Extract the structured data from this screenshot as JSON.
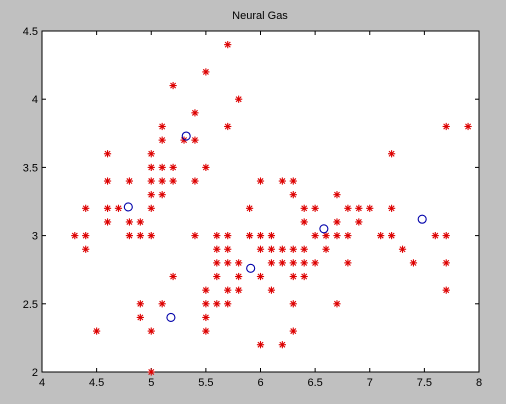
{
  "window": {
    "background": "#c0c0c0"
  },
  "colors": {
    "plot_bg": "#ffffff",
    "data_marker": "#dd0000",
    "prototype_marker": "#0000aa",
    "axis": "#000000"
  },
  "chart_data": {
    "type": "scatter",
    "title": "Neural Gas",
    "xlabel": "",
    "ylabel": "",
    "xlim": [
      4,
      8
    ],
    "ylim": [
      2,
      4.5
    ],
    "x_ticks": [
      "4",
      "4.5",
      "5",
      "5.5",
      "6",
      "6.5",
      "7",
      "7.5",
      "8"
    ],
    "y_ticks": [
      "2",
      "2.5",
      "3",
      "3.5",
      "4",
      "4.5"
    ],
    "grid": false,
    "legend": "none",
    "series": [
      {
        "marker": "asterisk",
        "color": "#dd0000",
        "points": [
          [
            4.3,
            3.0
          ],
          [
            4.4,
            2.9
          ],
          [
            4.4,
            3.0
          ],
          [
            4.4,
            3.2
          ],
          [
            4.5,
            2.3
          ],
          [
            4.6,
            3.1
          ],
          [
            4.6,
            3.2
          ],
          [
            4.6,
            3.4
          ],
          [
            4.6,
            3.6
          ],
          [
            4.7,
            3.2
          ],
          [
            4.8,
            3.0
          ],
          [
            4.8,
            3.1
          ],
          [
            4.8,
            3.4
          ],
          [
            4.9,
            2.4
          ],
          [
            4.9,
            2.5
          ],
          [
            4.9,
            3.0
          ],
          [
            4.9,
            3.1
          ],
          [
            5.0,
            2.0
          ],
          [
            5.0,
            2.3
          ],
          [
            5.0,
            3.0
          ],
          [
            5.0,
            3.2
          ],
          [
            5.0,
            3.3
          ],
          [
            5.0,
            3.4
          ],
          [
            5.0,
            3.5
          ],
          [
            5.0,
            3.6
          ],
          [
            5.1,
            2.5
          ],
          [
            5.1,
            3.3
          ],
          [
            5.1,
            3.4
          ],
          [
            5.1,
            3.5
          ],
          [
            5.1,
            3.7
          ],
          [
            5.1,
            3.8
          ],
          [
            5.2,
            2.7
          ],
          [
            5.2,
            3.4
          ],
          [
            5.2,
            3.5
          ],
          [
            5.2,
            4.1
          ],
          [
            5.3,
            3.7
          ],
          [
            5.4,
            3.0
          ],
          [
            5.4,
            3.4
          ],
          [
            5.4,
            3.7
          ],
          [
            5.4,
            3.9
          ],
          [
            5.5,
            2.3
          ],
          [
            5.5,
            2.4
          ],
          [
            5.5,
            2.5
          ],
          [
            5.5,
            2.6
          ],
          [
            5.5,
            3.5
          ],
          [
            5.5,
            4.2
          ],
          [
            5.6,
            2.5
          ],
          [
            5.6,
            2.7
          ],
          [
            5.6,
            2.8
          ],
          [
            5.6,
            2.9
          ],
          [
            5.6,
            3.0
          ],
          [
            5.7,
            2.5
          ],
          [
            5.7,
            2.6
          ],
          [
            5.7,
            2.8
          ],
          [
            5.7,
            2.9
          ],
          [
            5.7,
            3.0
          ],
          [
            5.7,
            3.8
          ],
          [
            5.7,
            4.4
          ],
          [
            5.8,
            2.6
          ],
          [
            5.8,
            2.7
          ],
          [
            5.8,
            2.8
          ],
          [
            5.8,
            4.0
          ],
          [
            5.9,
            3.0
          ],
          [
            5.9,
            3.2
          ],
          [
            6.0,
            2.2
          ],
          [
            6.0,
            2.7
          ],
          [
            6.0,
            2.9
          ],
          [
            6.0,
            3.0
          ],
          [
            6.0,
            3.4
          ],
          [
            6.1,
            2.6
          ],
          [
            6.1,
            2.8
          ],
          [
            6.1,
            2.9
          ],
          [
            6.1,
            3.0
          ],
          [
            6.2,
            2.2
          ],
          [
            6.2,
            2.8
          ],
          [
            6.2,
            2.9
          ],
          [
            6.2,
            3.4
          ],
          [
            6.3,
            2.3
          ],
          [
            6.3,
            2.5
          ],
          [
            6.3,
            2.7
          ],
          [
            6.3,
            2.8
          ],
          [
            6.3,
            2.9
          ],
          [
            6.3,
            3.3
          ],
          [
            6.3,
            3.4
          ],
          [
            6.4,
            2.7
          ],
          [
            6.4,
            2.8
          ],
          [
            6.4,
            2.9
          ],
          [
            6.4,
            3.1
          ],
          [
            6.4,
            3.2
          ],
          [
            6.5,
            2.8
          ],
          [
            6.5,
            3.0
          ],
          [
            6.5,
            3.2
          ],
          [
            6.6,
            2.9
          ],
          [
            6.6,
            3.0
          ],
          [
            6.7,
            2.5
          ],
          [
            6.7,
            3.0
          ],
          [
            6.7,
            3.1
          ],
          [
            6.7,
            3.3
          ],
          [
            6.8,
            2.8
          ],
          [
            6.8,
            3.0
          ],
          [
            6.8,
            3.2
          ],
          [
            6.9,
            3.1
          ],
          [
            6.9,
            3.2
          ],
          [
            7.0,
            3.2
          ],
          [
            7.1,
            3.0
          ],
          [
            7.2,
            3.0
          ],
          [
            7.2,
            3.2
          ],
          [
            7.2,
            3.6
          ],
          [
            7.3,
            2.9
          ],
          [
            7.4,
            2.8
          ],
          [
            7.6,
            3.0
          ],
          [
            7.7,
            2.6
          ],
          [
            7.7,
            2.8
          ],
          [
            7.7,
            3.0
          ],
          [
            7.7,
            3.8
          ],
          [
            7.9,
            3.8
          ]
        ]
      },
      {
        "marker": "circle",
        "color": "#0000aa",
        "points": [
          [
            4.79,
            3.21
          ],
          [
            5.18,
            2.4
          ],
          [
            5.32,
            3.73
          ],
          [
            5.91,
            2.76
          ],
          [
            6.58,
            3.05
          ],
          [
            7.48,
            3.12
          ]
        ]
      }
    ]
  }
}
